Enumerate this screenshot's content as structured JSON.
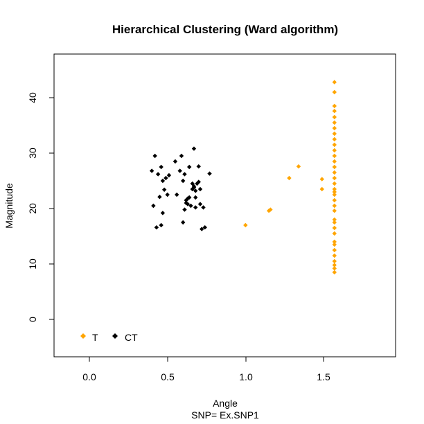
{
  "chart_data": {
    "type": "scatter",
    "title": "Hierarchical Clustering (Ward algorithm)",
    "xlabel": "Angle",
    "ylabel": "Magnitude",
    "subtitle": "SNP=  Ex.SNP1",
    "xlim": [
      -0.25,
      1.95
    ],
    "ylim": [
      -6.5,
      48
    ],
    "xticks": [
      "0.0",
      "0.5",
      "1.0",
      "1.5"
    ],
    "yticks": [
      "0",
      "10",
      "20",
      "30",
      "40"
    ],
    "grid": false,
    "legend_position": "bottom-left",
    "series": [
      {
        "name": "T",
        "color": "#FFA500",
        "points": [
          [
            1.0,
            17.0
          ],
          [
            1.15,
            19.6
          ],
          [
            1.16,
            19.8
          ],
          [
            1.28,
            25.5
          ],
          [
            1.34,
            27.6
          ],
          [
            1.49,
            25.3
          ],
          [
            1.49,
            23.5
          ],
          [
            1.57,
            42.8
          ],
          [
            1.57,
            41.0
          ],
          [
            1.57,
            38.5
          ],
          [
            1.57,
            37.6
          ],
          [
            1.57,
            36.5
          ],
          [
            1.57,
            35.5
          ],
          [
            1.57,
            34.5
          ],
          [
            1.57,
            33.5
          ],
          [
            1.57,
            32.5
          ],
          [
            1.57,
            31.5
          ],
          [
            1.57,
            30.5
          ],
          [
            1.57,
            29.5
          ],
          [
            1.57,
            28.5
          ],
          [
            1.57,
            27.5
          ],
          [
            1.57,
            26.5
          ],
          [
            1.57,
            25.5
          ],
          [
            1.57,
            24.5
          ],
          [
            1.57,
            23.5
          ],
          [
            1.57,
            23.0
          ],
          [
            1.57,
            22.5
          ],
          [
            1.57,
            21.5
          ],
          [
            1.57,
            20.5
          ],
          [
            1.57,
            19.6
          ],
          [
            1.57,
            18.0
          ],
          [
            1.57,
            17.5
          ],
          [
            1.57,
            16.5
          ],
          [
            1.57,
            15.5
          ],
          [
            1.57,
            14.0
          ],
          [
            1.57,
            13.5
          ],
          [
            1.57,
            12.5
          ],
          [
            1.57,
            11.5
          ],
          [
            1.57,
            10.5
          ],
          [
            1.57,
            9.8
          ],
          [
            1.57,
            9.2
          ],
          [
            1.57,
            8.5
          ]
        ]
      },
      {
        "name": "CT",
        "color": "#000000",
        "points": [
          [
            0.4,
            26.8
          ],
          [
            0.41,
            20.5
          ],
          [
            0.42,
            29.5
          ],
          [
            0.43,
            16.6
          ],
          [
            0.44,
            26.2
          ],
          [
            0.45,
            22.1
          ],
          [
            0.46,
            17.0
          ],
          [
            0.46,
            27.5
          ],
          [
            0.47,
            25.0
          ],
          [
            0.47,
            19.2
          ],
          [
            0.48,
            23.4
          ],
          [
            0.49,
            25.5
          ],
          [
            0.5,
            22.5
          ],
          [
            0.51,
            26.0
          ],
          [
            0.55,
            28.5
          ],
          [
            0.56,
            22.5
          ],
          [
            0.58,
            26.8
          ],
          [
            0.59,
            29.5
          ],
          [
            0.6,
            17.5
          ],
          [
            0.6,
            25.0
          ],
          [
            0.61,
            26.2
          ],
          [
            0.61,
            19.8
          ],
          [
            0.62,
            21.5
          ],
          [
            0.62,
            21.0
          ],
          [
            0.63,
            20.8
          ],
          [
            0.63,
            21.8
          ],
          [
            0.64,
            22.0
          ],
          [
            0.64,
            27.5
          ],
          [
            0.65,
            20.5
          ],
          [
            0.66,
            24.5
          ],
          [
            0.66,
            23.5
          ],
          [
            0.67,
            30.8
          ],
          [
            0.67,
            23.8
          ],
          [
            0.67,
            24.0
          ],
          [
            0.68,
            23.2
          ],
          [
            0.68,
            22.0
          ],
          [
            0.68,
            20.2
          ],
          [
            0.69,
            24.5
          ],
          [
            0.7,
            27.6
          ],
          [
            0.7,
            24.8
          ],
          [
            0.71,
            23.5
          ],
          [
            0.71,
            20.8
          ],
          [
            0.72,
            16.3
          ],
          [
            0.73,
            20.2
          ],
          [
            0.74,
            16.6
          ],
          [
            0.77,
            26.3
          ]
        ]
      }
    ]
  }
}
